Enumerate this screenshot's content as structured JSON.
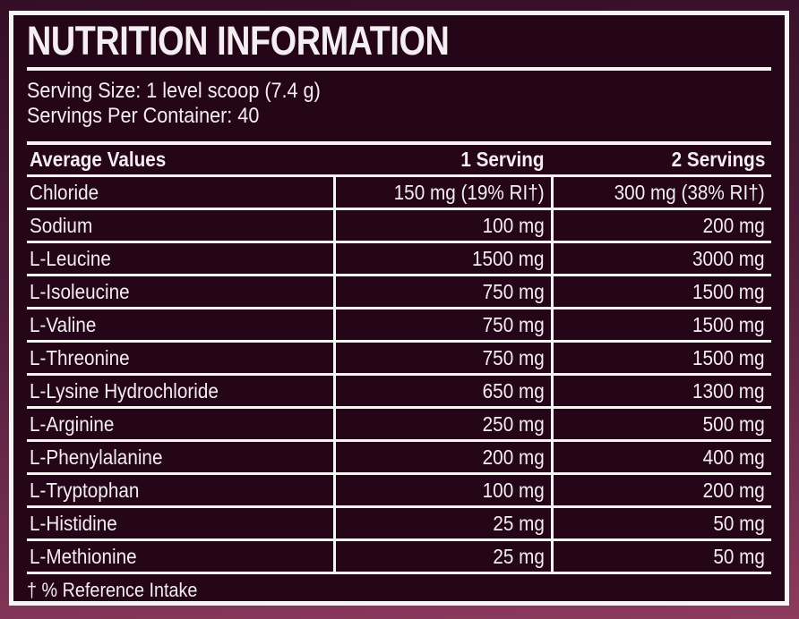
{
  "label": {
    "title": "NUTRITION INFORMATION",
    "serving_size": "Serving Size: 1 level scoop (7.4 g)",
    "servings_per_container": "Servings Per Container: 40",
    "footnote": "† % Reference Intake"
  },
  "table": {
    "headers": [
      "Average Values",
      "1 Serving",
      "2 Servings"
    ],
    "rows": [
      {
        "name": "Chloride",
        "serving1": "150 mg (19% RI†)",
        "serving2": "300 mg (38% RI†)"
      },
      {
        "name": "Sodium",
        "serving1": "100 mg",
        "serving2": "200 mg"
      },
      {
        "name": "L-Leucine",
        "serving1": "1500 mg",
        "serving2": "3000 mg"
      },
      {
        "name": "L-Isoleucine",
        "serving1": "750 mg",
        "serving2": "1500 mg"
      },
      {
        "name": "L-Valine",
        "serving1": "750 mg",
        "serving2": "1500 mg"
      },
      {
        "name": "L-Threonine",
        "serving1": "750 mg",
        "serving2": "1500 mg"
      },
      {
        "name": "L-Lysine Hydrochloride",
        "serving1": "650 mg",
        "serving2": "1300 mg"
      },
      {
        "name": "L-Arginine",
        "serving1": "250 mg",
        "serving2": "500 mg"
      },
      {
        "name": "L-Phenylalanine",
        "serving1": "200 mg",
        "serving2": "400 mg"
      },
      {
        "name": "L-Tryptophan",
        "serving1": "100 mg",
        "serving2": "200 mg"
      },
      {
        "name": "L-Histidine",
        "serving1": "25 mg",
        "serving2": "50 mg"
      },
      {
        "name": "L-Methionine",
        "serving1": "25 mg",
        "serving2": "50 mg"
      }
    ]
  },
  "colors": {
    "background_top": "#340d26",
    "background_bottom": "#8d3a5e",
    "panel_background": "#250518",
    "frame_border": "#f7f3f5",
    "text": "#f4edf2"
  }
}
